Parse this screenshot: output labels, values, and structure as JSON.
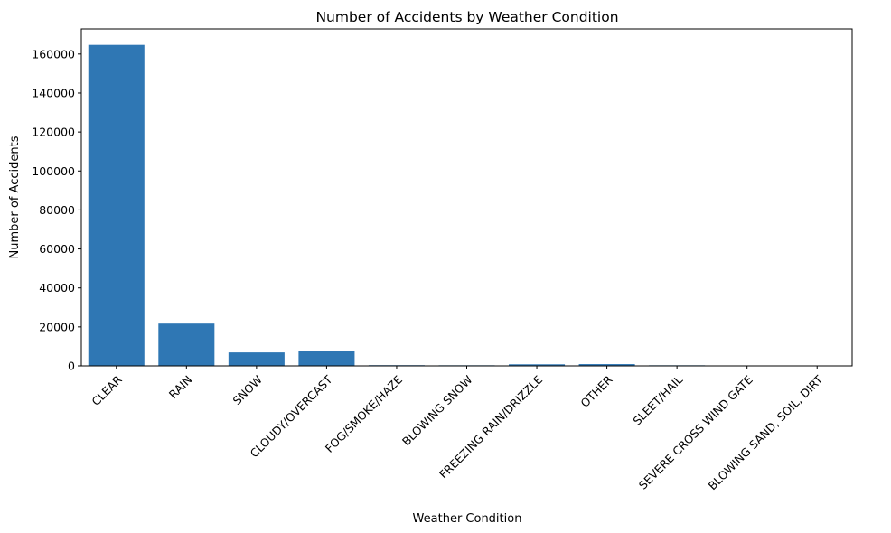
{
  "chart_data": {
    "type": "bar",
    "title": "Number of Accidents by Weather Condition",
    "xlabel": "Weather Condition",
    "ylabel": "Number of Accidents",
    "categories": [
      "CLEAR",
      "RAIN",
      "SNOW",
      "CLOUDY/OVERCAST",
      "FOG/SMOKE/HAZE",
      "BLOWING SNOW",
      "FREEZING RAIN/DRIZZLE",
      "OTHER",
      "SLEET/HAIL",
      "SEVERE CROSS WIND GATE",
      "BLOWING SAND, SOIL, DIRT"
    ],
    "values": [
      164700,
      21700,
      6900,
      7700,
      350,
      300,
      800,
      900,
      300,
      200,
      100
    ],
    "ylim": [
      0,
      172900
    ],
    "yticks": [
      0,
      20000,
      40000,
      60000,
      80000,
      100000,
      120000,
      140000,
      160000
    ],
    "grid": false,
    "bar_color": "#2f77b4"
  }
}
